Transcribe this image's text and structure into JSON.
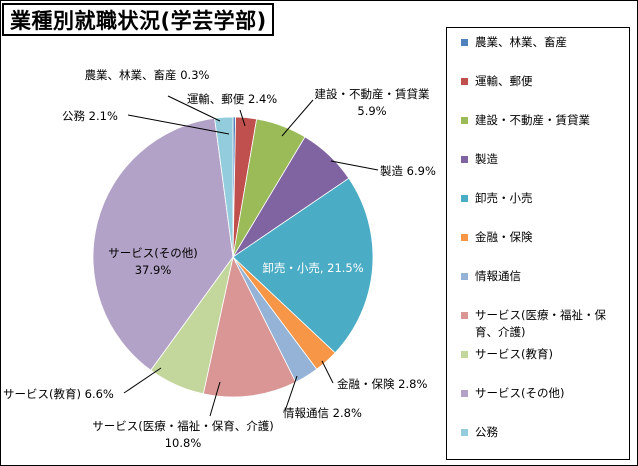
{
  "chart_data": {
    "type": "pie",
    "title": "業種別就職状況(学芸学部)",
    "slices": [
      {
        "label": "農業、林業、畜産",
        "value": 0.3,
        "color": "#4f81bd",
        "callout": "農業、林業、畜産 0.3%"
      },
      {
        "label": "運輸、郵便",
        "value": 2.4,
        "color": "#c0504d",
        "callout": "運輸、郵便 2.4%"
      },
      {
        "label": "建設・不動産・賃貸業",
        "value": 5.9,
        "color": "#9bbb59",
        "callout": "建設・不動産・賃貸業\n5.9%"
      },
      {
        "label": "製造",
        "value": 6.9,
        "color": "#8064a2",
        "callout": "製造 6.9%"
      },
      {
        "label": "卸売・小売",
        "value": 21.5,
        "color": "#4bacc6",
        "callout": "卸売・小売, 21.5%"
      },
      {
        "label": "金融・保険",
        "value": 2.8,
        "color": "#f79646",
        "callout": "金融・保険 2.8%"
      },
      {
        "label": "情報通信",
        "value": 2.8,
        "color": "#95b3d7",
        "callout": "情報通信 2.8%"
      },
      {
        "label": "サービス(医療・福祉・保育、介護)",
        "value": 10.8,
        "color": "#d99694",
        "callout": "サービス(医療・福祉・保育、介護)\n10.8%"
      },
      {
        "label": "サービス(教育)",
        "value": 6.6,
        "color": "#c3d69b",
        "callout": "サービス(教育) 6.6%"
      },
      {
        "label": "サービス(その他)",
        "value": 37.9,
        "color": "#b3a2c7",
        "callout": "サービス(その他)\n37.9%"
      },
      {
        "label": "公務",
        "value": 2.1,
        "color": "#93cddd",
        "callout": "公務 2.1%"
      }
    ],
    "legend_position": "right"
  },
  "legend": {
    "items": [
      {
        "label": "農業、林業、畜産",
        "color": "#4f81bd"
      },
      {
        "label": "運輸、郵便",
        "color": "#c0504d"
      },
      {
        "label": "建設・不動産・賃貸業",
        "color": "#9bbb59"
      },
      {
        "label": "製造",
        "color": "#8064a2"
      },
      {
        "label": "卸売・小売",
        "color": "#4bacc6"
      },
      {
        "label": "金融・保険",
        "color": "#f79646"
      },
      {
        "label": "情報通信",
        "color": "#95b3d7"
      },
      {
        "label": "サービス(医療・福祉・保育、介護)",
        "color": "#d99694"
      },
      {
        "label": "サービス(教育)",
        "color": "#c3d69b"
      },
      {
        "label": "サービス(その他)",
        "color": "#b3a2c7"
      },
      {
        "label": "公務",
        "color": "#93cddd"
      }
    ]
  }
}
